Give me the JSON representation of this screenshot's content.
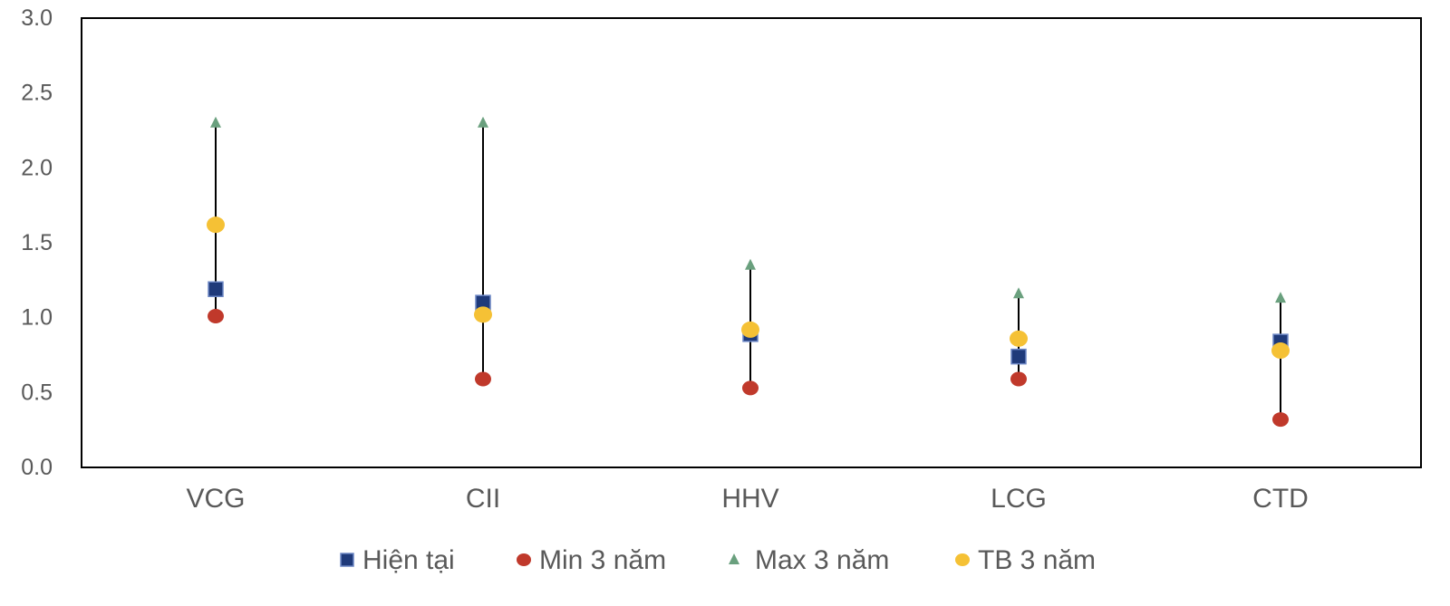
{
  "chart_data": {
    "type": "scatter",
    "title": "",
    "xlabel": "",
    "ylabel": "",
    "ylim": [
      0,
      3
    ],
    "y_ticks": [
      "0.0",
      "0.5",
      "1.0",
      "1.5",
      "2.0",
      "2.5",
      "3.0"
    ],
    "grid": false,
    "legend_position": "bottom",
    "categories": [
      "VCG",
      "CII",
      "HHV",
      "LCG",
      "CTD"
    ],
    "series": [
      {
        "name": "Hiện tại",
        "marker": "square",
        "color": "#1f3a7a",
        "values": [
          1.19,
          1.1,
          0.89,
          0.74,
          0.84
        ]
      },
      {
        "name": "Min 3 năm",
        "marker": "circle",
        "color": "#c0392b",
        "values": [
          1.01,
          0.59,
          0.53,
          0.59,
          0.32
        ]
      },
      {
        "name": "Max 3 năm",
        "marker": "triangle",
        "color": "#6aa07e",
        "values": [
          2.3,
          2.3,
          1.35,
          1.16,
          1.13
        ]
      },
      {
        "name": "TB 3 năm",
        "marker": "circle",
        "color": "#f5c135",
        "values": [
          1.62,
          1.02,
          0.92,
          0.86,
          0.78
        ]
      }
    ]
  }
}
